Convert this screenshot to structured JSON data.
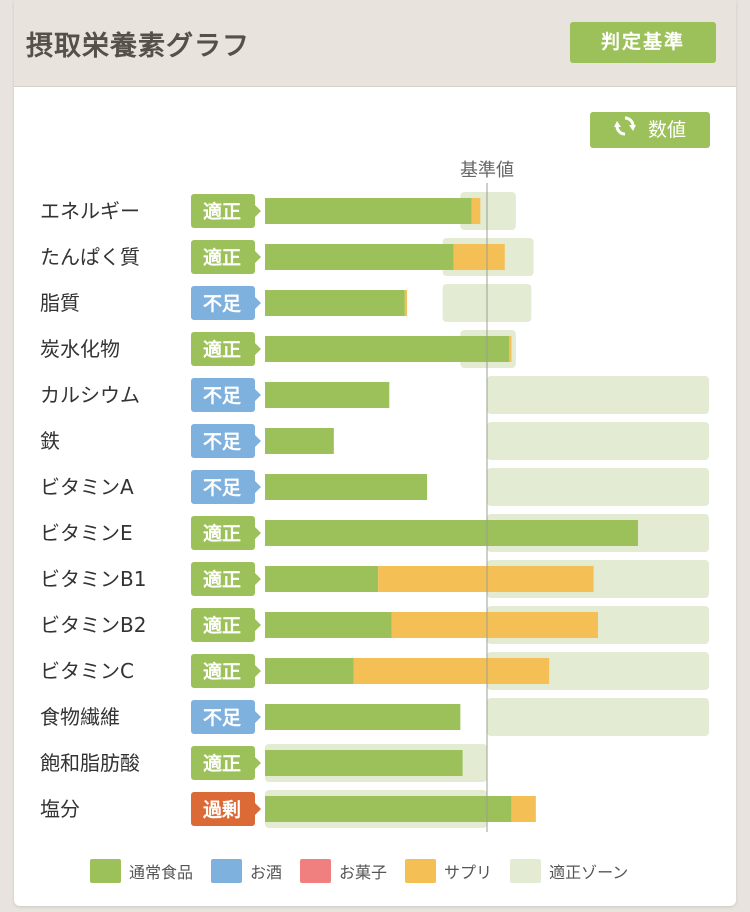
{
  "header": {
    "title": "摂取栄養素グラフ",
    "criteria_label": "判定基準"
  },
  "toggle": {
    "label": "数値",
    "icon": "refresh-icon"
  },
  "colors": {
    "food": "#9dc15a",
    "alcohol": "#7eb1de",
    "snack": "#f08080",
    "supplement": "#f4bf55",
    "zone": "#e3ecd3",
    "status_ok": "#9dc15a",
    "status_low": "#7eb1de",
    "status_over": "#dc6a37"
  },
  "chart_data": {
    "type": "bar",
    "stacked": true,
    "orientation": "horizontal",
    "reference_label": "基準値",
    "reference_value": 100,
    "xlim": [
      0,
      200
    ],
    "categories": [
      "エネルギー",
      "たんぱく質",
      "脂質",
      "炭水化物",
      "カルシウム",
      "鉄",
      "ビタミンA",
      "ビタミンE",
      "ビタミンB1",
      "ビタミンB2",
      "ビタミンC",
      "食物繊維",
      "飽和脂肪酸",
      "塩分"
    ],
    "status": [
      "適正",
      "適正",
      "不足",
      "適正",
      "不足",
      "不足",
      "不足",
      "適正",
      "適正",
      "適正",
      "適正",
      "不足",
      "適正",
      "過剰"
    ],
    "status_type": [
      "ok",
      "ok",
      "low",
      "ok",
      "low",
      "low",
      "low",
      "ok",
      "ok",
      "ok",
      "ok",
      "low",
      "ok",
      "over"
    ],
    "series": [
      {
        "name": "通常食品",
        "color_key": "food",
        "values": [
          93,
          85,
          63,
          110,
          56,
          31,
          73,
          168,
          51,
          57,
          40,
          88,
          89,
          111
        ]
      },
      {
        "name": "お酒",
        "color_key": "alcohol",
        "values": [
          0,
          0,
          0,
          0,
          0,
          0,
          0,
          0,
          0,
          0,
          0,
          0,
          0,
          0
        ]
      },
      {
        "name": "お菓子",
        "color_key": "snack",
        "values": [
          0,
          0,
          0,
          0,
          0,
          0,
          0,
          0,
          0,
          0,
          0,
          0,
          0,
          0
        ]
      },
      {
        "name": "サプリ",
        "color_key": "supplement",
        "values": [
          4,
          23,
          1,
          1,
          0,
          0,
          0,
          0,
          97,
          93,
          88,
          0,
          0,
          11
        ]
      }
    ],
    "zone": [
      [
        88,
        113
      ],
      [
        80,
        121
      ],
      [
        80,
        120
      ],
      [
        88,
        113
      ],
      [
        100,
        200
      ],
      [
        100,
        200
      ],
      [
        100,
        200
      ],
      [
        100,
        200
      ],
      [
        100,
        200
      ],
      [
        100,
        200
      ],
      [
        100,
        200
      ],
      [
        100,
        200
      ],
      [
        0,
        100
      ],
      [
        0,
        100
      ]
    ],
    "legend": [
      "通常食品",
      "お酒",
      "お菓子",
      "サプリ",
      "適正ゾーン"
    ]
  }
}
